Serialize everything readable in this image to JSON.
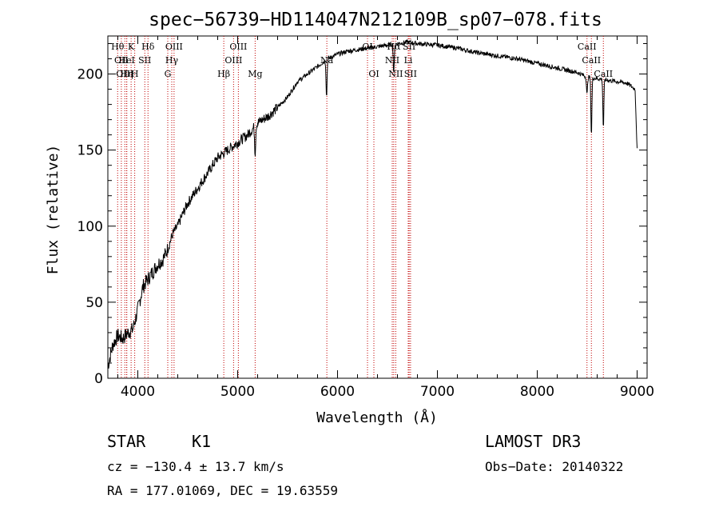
{
  "chart_data": {
    "type": "line",
    "title": "spec−56739−HD114047N212109B_sp07−078.fits",
    "xlabel": "Wavelength (Å)",
    "ylabel": "Flux (relative)",
    "xlim": [
      3700,
      9100
    ],
    "ylim": [
      0,
      225
    ],
    "x_ticks": [
      4000,
      5000,
      6000,
      7000,
      8000,
      9000
    ],
    "y_ticks": [
      0,
      50,
      100,
      150,
      200
    ],
    "spectrum": {
      "name": "flux",
      "x": [
        3700,
        3750,
        3800,
        3850,
        3900,
        3950,
        4000,
        4050,
        4100,
        4150,
        4200,
        4250,
        4300,
        4350,
        4400,
        4450,
        4500,
        4600,
        4700,
        4800,
        4900,
        5000,
        5100,
        5200,
        5300,
        5400,
        5500,
        5600,
        5700,
        5800,
        5900,
        6000,
        6100,
        6200,
        6300,
        6400,
        6500,
        6600,
        6700,
        6800,
        7000,
        7200,
        7400,
        7600,
        7800,
        8000,
        8200,
        8400,
        8500,
        8600,
        8700,
        8800,
        8900,
        8980,
        9000
      ],
      "y": [
        8,
        22,
        28,
        26,
        30,
        32,
        45,
        60,
        65,
        70,
        75,
        78,
        85,
        95,
        100,
        108,
        115,
        125,
        135,
        145,
        150,
        155,
        160,
        168,
        172,
        178,
        185,
        195,
        200,
        205,
        210,
        213,
        215,
        216,
        217,
        218,
        219,
        220,
        221,
        220,
        219,
        217,
        214,
        212,
        210,
        207,
        204,
        201,
        198,
        197,
        196,
        195,
        194,
        190,
        150
      ],
      "dips": [
        {
          "x": 5175,
          "depth": 18
        },
        {
          "x": 5890,
          "depth": 25
        },
        {
          "x": 6563,
          "depth": 20
        },
        {
          "x": 8498,
          "depth": 12
        },
        {
          "x": 8542,
          "depth": 38
        },
        {
          "x": 8662,
          "depth": 32
        }
      ]
    },
    "lines": [
      {
        "x": 3798,
        "labels": [
          "Hθ"
        ],
        "row": 0
      },
      {
        "x": 3835,
        "labels": [
          "OII"
        ],
        "row": 1
      },
      {
        "x": 3870,
        "labels": [
          "OIII"
        ],
        "row": 2
      },
      {
        "x": 3889,
        "labels": [
          "Hη"
        ],
        "row": 2
      },
      {
        "x": 3933,
        "labels": [
          "K"
        ],
        "row": 0
      },
      {
        "x": 3969,
        "labels": [
          "H"
        ],
        "row": 2
      },
      {
        "x": 3889,
        "labels": [
          "HeI"
        ],
        "row": 1
      },
      {
        "x": 4070,
        "labels": [
          "SII"
        ],
        "row": 1
      },
      {
        "x": 4102,
        "labels": [
          "Hδ"
        ],
        "row": 0
      },
      {
        "x": 4300,
        "labels": [
          "G"
        ],
        "row": 2
      },
      {
        "x": 4340,
        "labels": [
          "Hγ"
        ],
        "row": 1
      },
      {
        "x": 4363,
        "labels": [
          "OIII"
        ],
        "row": 0
      },
      {
        "x": 4861,
        "labels": [
          "Hβ"
        ],
        "row": 2
      },
      {
        "x": 4959,
        "labels": [
          "OIII"
        ],
        "row": 1
      },
      {
        "x": 5007,
        "labels": [
          "OIII"
        ],
        "row": 0
      },
      {
        "x": 5175,
        "labels": [
          "Mg"
        ],
        "row": 2
      },
      {
        "x": 5893,
        "labels": [
          "Na"
        ],
        "row": 1
      },
      {
        "x": 6300,
        "labels": [
          "OI"
        ],
        "row": 0
      },
      {
        "x": 6364,
        "labels": [
          "OI"
        ],
        "row": 2
      },
      {
        "x": 6548,
        "labels": [
          "NII"
        ],
        "row": 1
      },
      {
        "x": 6563,
        "labels": [
          "Hα"
        ],
        "row": 0
      },
      {
        "x": 6583,
        "labels": [
          "NII"
        ],
        "row": 2
      },
      {
        "x": 6717,
        "labels": [
          "SII"
        ],
        "row": 0
      },
      {
        "x": 6731,
        "labels": [
          "SII"
        ],
        "row": 2
      },
      {
        "x": 6708,
        "labels": [
          "Li"
        ],
        "row": 1
      },
      {
        "x": 8498,
        "labels": [
          "CaII"
        ],
        "row": 0
      },
      {
        "x": 8542,
        "labels": [
          "CaII"
        ],
        "row": 1
      },
      {
        "x": 8662,
        "labels": [
          "CaII"
        ],
        "row": 2
      }
    ]
  },
  "info": {
    "class": "STAR",
    "subclass": "K1",
    "survey": "LAMOST DR3",
    "cz": "cz = −130.4 ± 13.7 km/s",
    "obs_date": "Obs−Date: 20140322",
    "radec": "RA = 177.01069, DEC =  19.63559"
  }
}
